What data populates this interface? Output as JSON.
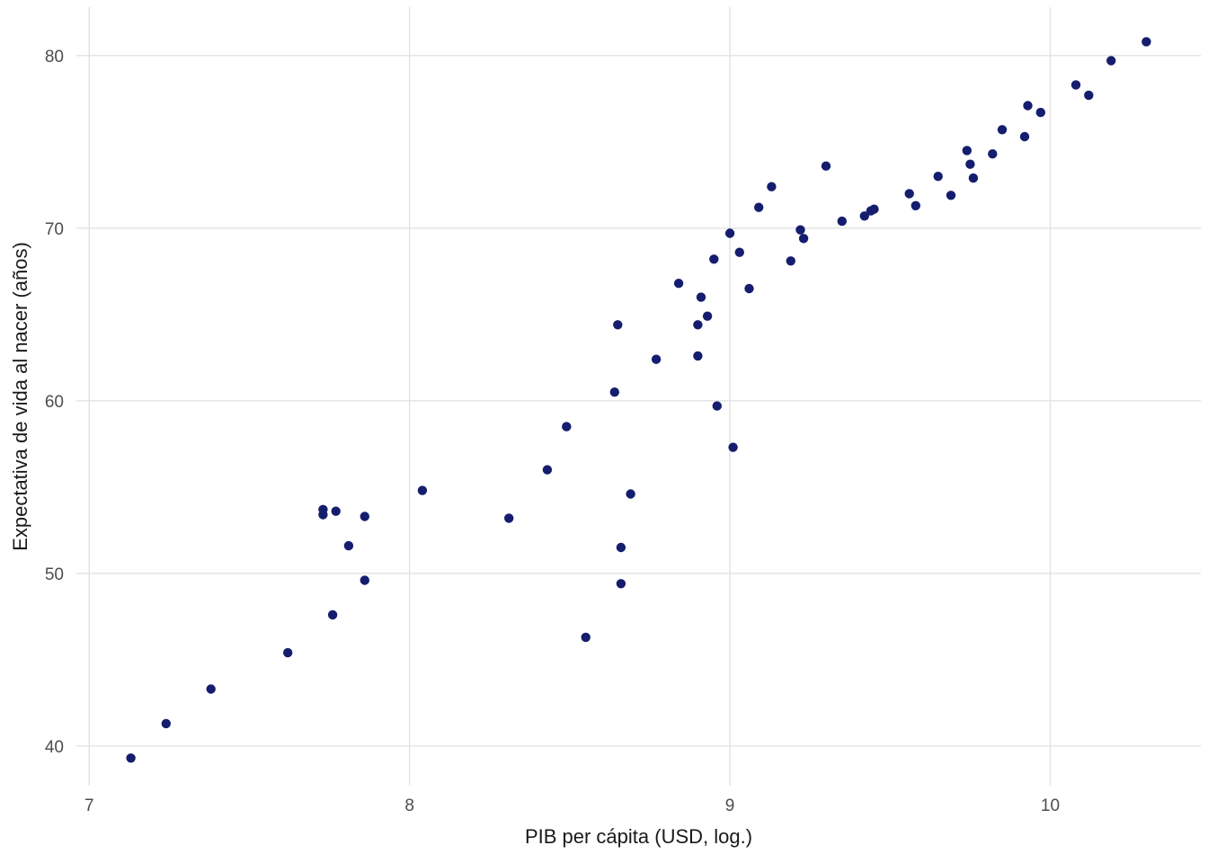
{
  "chart_data": {
    "type": "scatter",
    "title": "",
    "xlabel": "PIB per cápita (USD, log.)",
    "ylabel": "Expectativa de vida al nacer (años)",
    "x_ticks": [
      "7",
      "8",
      "9",
      "10"
    ],
    "x_tick_values": [
      7,
      8,
      9,
      10
    ],
    "y_ticks": [
      "40",
      "50",
      "60",
      "70",
      "80"
    ],
    "y_tick_values": [
      40,
      50,
      60,
      70,
      80
    ],
    "xlim": [
      6.96,
      10.47
    ],
    "ylim": [
      37.7,
      82.8
    ],
    "grid": "major",
    "legend": "none",
    "point_color": "#151d6e",
    "background_color": "#ffffff",
    "gridline_color": "#e2e2e2",
    "tick_label_color": "#4d4d4d",
    "axis_title_color": "#1a1a1a",
    "points": [
      [
        7.13,
        39.3
      ],
      [
        7.24,
        41.3
      ],
      [
        7.38,
        43.3
      ],
      [
        7.62,
        45.4
      ],
      [
        7.76,
        47.6
      ],
      [
        7.73,
        53.4
      ],
      [
        7.73,
        53.7
      ],
      [
        7.77,
        53.6
      ],
      [
        7.81,
        51.6
      ],
      [
        7.86,
        49.6
      ],
      [
        7.86,
        53.3
      ],
      [
        8.04,
        54.8
      ],
      [
        8.31,
        53.2
      ],
      [
        8.43,
        56.0
      ],
      [
        8.49,
        58.5
      ],
      [
        8.55,
        46.3
      ],
      [
        8.64,
        60.5
      ],
      [
        8.65,
        64.4
      ],
      [
        8.66,
        51.5
      ],
      [
        8.66,
        49.4
      ],
      [
        8.69,
        54.6
      ],
      [
        8.77,
        62.4
      ],
      [
        8.84,
        66.8
      ],
      [
        8.9,
        64.4
      ],
      [
        8.91,
        66.0
      ],
      [
        8.9,
        62.6
      ],
      [
        8.93,
        64.9
      ],
      [
        8.95,
        68.2
      ],
      [
        8.96,
        59.7
      ],
      [
        9.0,
        69.7
      ],
      [
        9.01,
        57.3
      ],
      [
        9.03,
        68.6
      ],
      [
        9.06,
        66.5
      ],
      [
        9.09,
        71.2
      ],
      [
        9.13,
        72.4
      ],
      [
        9.19,
        68.1
      ],
      [
        9.22,
        69.9
      ],
      [
        9.23,
        69.4
      ],
      [
        9.3,
        73.6
      ],
      [
        9.35,
        70.4
      ],
      [
        9.42,
        70.7
      ],
      [
        9.44,
        71.0
      ],
      [
        9.45,
        71.1
      ],
      [
        9.56,
        72.0
      ],
      [
        9.58,
        71.3
      ],
      [
        9.65,
        73.0
      ],
      [
        9.69,
        71.9
      ],
      [
        9.74,
        74.5
      ],
      [
        9.75,
        73.7
      ],
      [
        9.76,
        72.9
      ],
      [
        9.82,
        74.3
      ],
      [
        9.85,
        75.7
      ],
      [
        9.92,
        75.3
      ],
      [
        9.93,
        77.1
      ],
      [
        9.97,
        76.7
      ],
      [
        10.08,
        78.3
      ],
      [
        10.12,
        77.7
      ],
      [
        10.19,
        79.7
      ],
      [
        10.3,
        80.8
      ]
    ]
  }
}
